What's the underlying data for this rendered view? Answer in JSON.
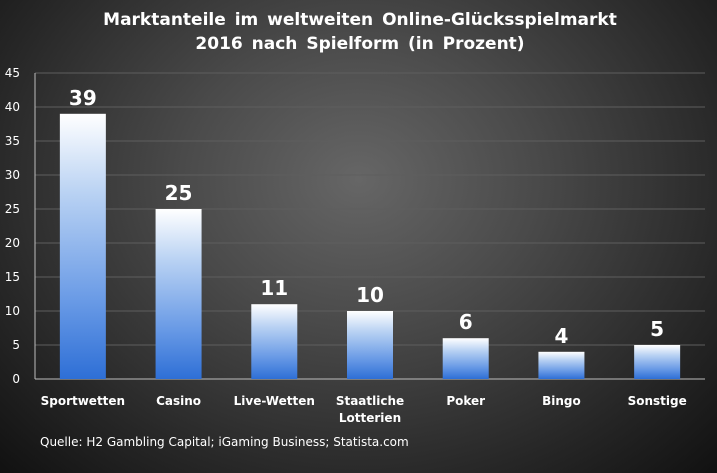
{
  "chart_data": {
    "type": "bar",
    "title_lines": [
      "Marktanteile im weltweiten Online-Glücksspielmarkt",
      "2016 nach Spielform (in Prozent)"
    ],
    "categories": [
      [
        "Sportwetten"
      ],
      [
        "Casino"
      ],
      [
        "Live-Wetten"
      ],
      [
        "Staatliche",
        "Lotterien"
      ],
      [
        "Poker"
      ],
      [
        "Bingo"
      ],
      [
        "Sonstige"
      ]
    ],
    "values": [
      39,
      25,
      11,
      10,
      6,
      4,
      5
    ],
    "ylim": [
      0,
      45
    ],
    "yticks": [
      0,
      5,
      10,
      15,
      20,
      25,
      30,
      35,
      40,
      45
    ],
    "grid": true,
    "source": "Quelle: H2 Gambling Capital; iGaming Business; Statista.com",
    "colors": {
      "bar_top": "#ffffff",
      "bar_bottom": "#2e6fd6",
      "gridline": "#5e5e5e",
      "axis": "#bdbdbd",
      "text": "#ffffff"
    }
  }
}
